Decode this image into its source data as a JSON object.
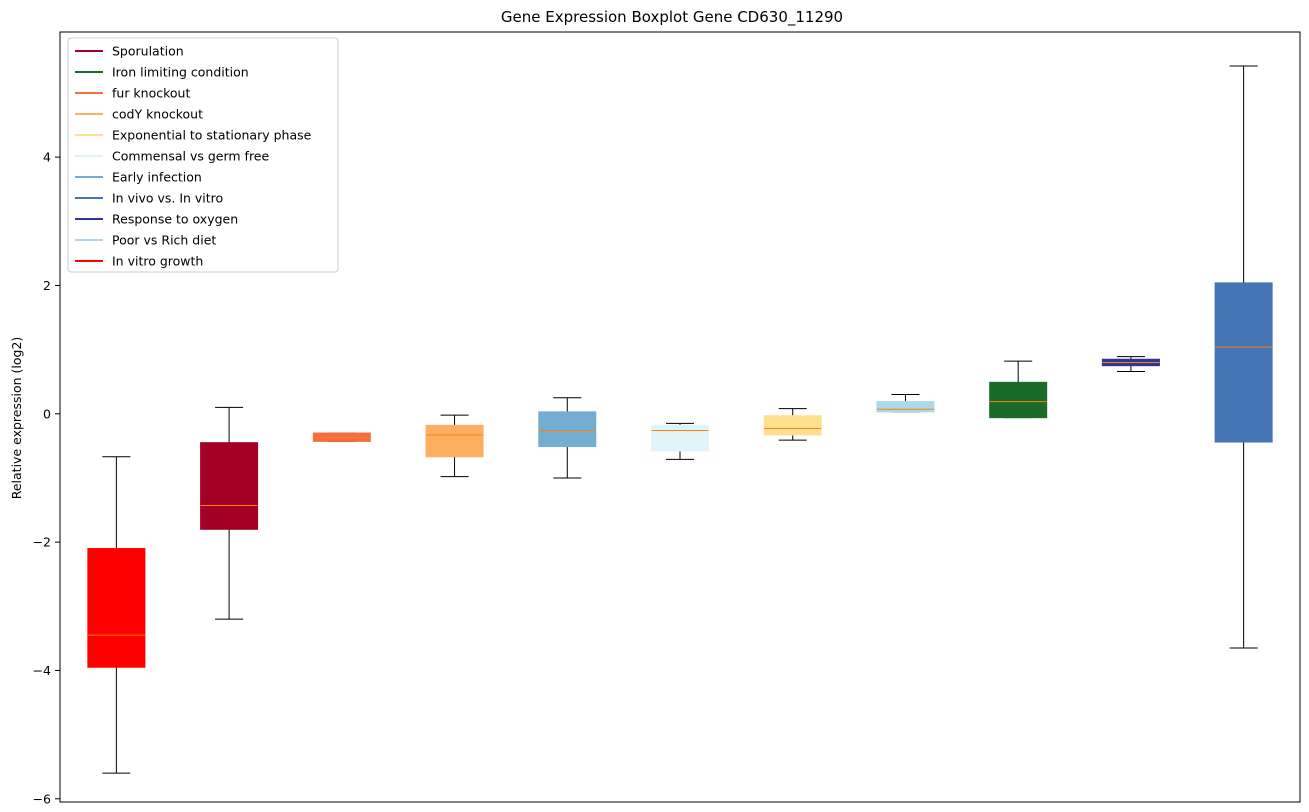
{
  "chart_data": {
    "type": "boxplot",
    "title": "Gene Expression Boxplot Gene CD630_11290",
    "xlabel": "",
    "ylabel": "Relative expression (log2)",
    "ylim": [
      -6.05,
      5.95
    ],
    "yticks": [
      -6,
      -4,
      -2,
      0,
      2,
      4
    ],
    "ytick_labels": [
      "−6",
      "−4",
      "−2",
      "0",
      "2",
      "4"
    ],
    "grid": false,
    "legend_position": "upper-left",
    "legend": [
      {
        "label": "Sporulation",
        "color": "#a50026"
      },
      {
        "label": "Iron limiting condition",
        "color": "#1a6b2a"
      },
      {
        "label": "fur knockout",
        "color": "#f46d43"
      },
      {
        "label": "codY knockout",
        "color": "#fdae61"
      },
      {
        "label": "Exponential to stationary phase",
        "color": "#fee090"
      },
      {
        "label": "Commensal vs germ free",
        "color": "#e0f3f8"
      },
      {
        "label": "Early infection",
        "color": "#74add1"
      },
      {
        "label": "In vivo vs. In vitro",
        "color": "#4575b4"
      },
      {
        "label": "Response to oxygen",
        "color": "#313695"
      },
      {
        "label": "Poor vs Rich diet",
        "color": "#abd9e9"
      },
      {
        "label": "In vitro growth",
        "color": "#ff0000"
      }
    ],
    "boxes": [
      {
        "color": "#ff0000",
        "whisker_low": -5.6,
        "q1": -3.95,
        "median": -3.45,
        "q3": -2.1,
        "whisker_high": -0.67
      },
      {
        "color": "#a50026",
        "whisker_low": -3.2,
        "q1": -1.8,
        "median": -1.43,
        "q3": -0.45,
        "whisker_high": 0.1
      },
      {
        "color": "#f46d43",
        "whisker_low": -0.43,
        "q1": -0.43,
        "median": -0.38,
        "q3": -0.3,
        "whisker_high": -0.3
      },
      {
        "color": "#fdae61",
        "whisker_low": -0.98,
        "q1": -0.67,
        "median": -0.33,
        "q3": -0.18,
        "whisker_high": -0.02
      },
      {
        "color": "#74add1",
        "whisker_low": -1.0,
        "q1": -0.51,
        "median": -0.26,
        "q3": 0.03,
        "whisker_high": 0.25
      },
      {
        "color": "#e0f3f8",
        "whisker_low": -0.71,
        "q1": -0.58,
        "median": -0.26,
        "q3": -0.18,
        "whisker_high": -0.15
      },
      {
        "color": "#fee090",
        "whisker_low": -0.41,
        "q1": -0.33,
        "median": -0.23,
        "q3": -0.03,
        "whisker_high": 0.08
      },
      {
        "color": "#abd9e9",
        "whisker_low": 0.03,
        "q1": 0.03,
        "median": 0.07,
        "q3": 0.19,
        "whisker_high": 0.3
      },
      {
        "color": "#1a6b2a",
        "whisker_low": -0.06,
        "q1": -0.06,
        "median": 0.19,
        "q3": 0.49,
        "whisker_high": 0.82
      },
      {
        "color": "#313695",
        "whisker_low": 0.66,
        "q1": 0.75,
        "median": 0.8,
        "q3": 0.85,
        "whisker_high": 0.89
      },
      {
        "color": "#4575b4",
        "whisker_low": -3.65,
        "q1": -0.44,
        "median": 1.04,
        "q3": 2.04,
        "whisker_high": 5.42
      }
    ],
    "median_color": "#ff7f0e"
  }
}
